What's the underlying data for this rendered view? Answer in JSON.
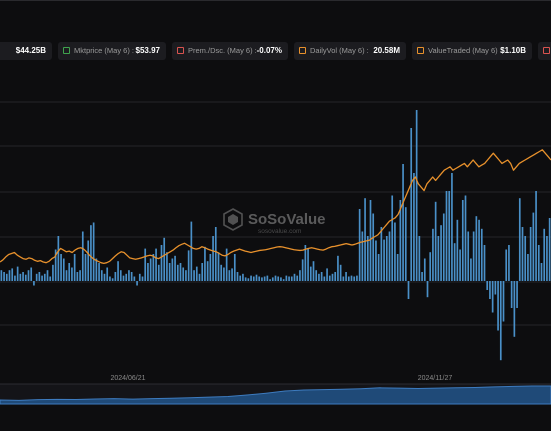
{
  "legend": [
    {
      "label": "",
      "value": "$44.25B",
      "color": "#5f9fd6"
    },
    {
      "label": "Mktprice (May 6) :",
      "value": "$53.97",
      "color": "#3fa34d"
    },
    {
      "label": "Prem./Dsc. (May 6) :",
      "value": "-0.07%",
      "color": "#d9534f"
    },
    {
      "label": "DailyVol (May 6) :",
      "value": "20.58M",
      "color": "#e8912c"
    },
    {
      "label": "ValueTraded (May 6) :",
      "value": "$1.10B",
      "color": "#e8912c"
    },
    {
      "label": "",
      "value": "",
      "color": "#d9534f"
    }
  ],
  "watermark": {
    "brand": "SoSoValue",
    "url": "sosovalue.com"
  },
  "colors": {
    "bars": "#4a90c8",
    "line": "#e8912c",
    "grid": "#25252a",
    "navigator": "#1f4a78"
  },
  "chart_data": {
    "type": "bar",
    "x_tick_labels": [
      "2024/06/21",
      "2024/11/27"
    ],
    "series": [
      {
        "type": "bar",
        "values": [
          0.12,
          0.1,
          0.08,
          0.12,
          0.14,
          0.06,
          0.16,
          0.08,
          0.1,
          0.07,
          0.12,
          0.15,
          -0.05,
          0.08,
          0.1,
          0.06,
          0.08,
          0.12,
          0.05,
          0.18,
          0.35,
          0.5,
          0.3,
          0.25,
          0.12,
          0.2,
          0.15,
          0.3,
          0.1,
          0.12,
          0.55,
          0.3,
          0.45,
          0.62,
          0.65,
          0.25,
          0.2,
          0.12,
          0.08,
          0.15,
          0.05,
          0.03,
          0.1,
          0.22,
          0.12,
          0.06,
          0.08,
          0.12,
          0.1,
          0.05,
          -0.05,
          0.08,
          0.05,
          0.36,
          0.2,
          0.25,
          0.3,
          0.36,
          0.18,
          0.4,
          0.48,
          0.32,
          0.2,
          0.25,
          0.28,
          0.18,
          0.2,
          0.15,
          0.12,
          0.34,
          0.66,
          0.12,
          0.16,
          0.08,
          0.2,
          0.38,
          0.22,
          0.3,
          0.5,
          0.6,
          0.32,
          0.18,
          0.15,
          0.36,
          0.12,
          0.14,
          0.3,
          0.1,
          0.06,
          0.08,
          0.04,
          0.03,
          0.06,
          0.05,
          0.07,
          0.05,
          0.04,
          0.05,
          0.06,
          0.02,
          0.04,
          0.06,
          0.05,
          0.04,
          0.02,
          0.06,
          0.05,
          0.05,
          0.08,
          0.06,
          0.12,
          0.24,
          0.4,
          0.36,
          0.16,
          0.22,
          0.12,
          0.08,
          0.1,
          0.05,
          0.14,
          0.06,
          0.08,
          0.1,
          0.28,
          0.18,
          0.05,
          0.1,
          0.05,
          0.06,
          0.05,
          0.06,
          0.8,
          0.55,
          0.92,
          0.5,
          0.9,
          0.75,
          0.45,
          0.3,
          0.6,
          0.46,
          0.5,
          0.55,
          0.95,
          0.65,
          0.3,
          0.9,
          1.3,
          0.82,
          -0.2,
          1.7,
          1.2,
          1.9,
          0.5,
          0.1,
          0.25,
          -0.18,
          0.32,
          0.58,
          0.88,
          0.5,
          0.62,
          0.75,
          1.0,
          1.0,
          1.2,
          0.42,
          0.68,
          0.35,
          0.9,
          0.95,
          0.55,
          0.25,
          0.55,
          0.72,
          0.68,
          0.58,
          0.4,
          -0.1,
          -0.2,
          -0.35,
          -0.15,
          -0.55,
          -0.88,
          -0.45,
          0.35,
          0.4,
          -0.3,
          -0.62,
          -0.3,
          0.92,
          0.6,
          0.5,
          0.3,
          0.6,
          0.76,
          1.0,
          0.4,
          0.2,
          0.58,
          0.5,
          0.7
        ]
      },
      {
        "type": "line",
        "values": [
          0.6,
          0.66,
          0.75,
          0.82,
          0.85,
          0.88,
          0.8,
          0.75,
          0.7,
          0.68,
          0.72,
          0.7,
          0.65,
          0.62,
          0.64,
          0.6,
          0.58,
          0.62,
          0.7,
          0.75,
          0.9,
          1.0,
          0.95,
          0.9,
          0.92,
          0.88,
          0.95,
          1.0,
          1.02,
          0.98,
          0.9,
          0.8,
          0.72,
          0.66,
          0.62,
          0.58,
          0.56,
          0.58,
          0.62,
          0.7,
          0.78,
          0.85,
          0.9,
          0.88,
          0.8,
          0.72,
          0.7,
          0.68,
          0.7,
          0.72,
          0.75,
          0.78,
          0.8,
          0.78,
          0.72,
          0.7,
          0.75,
          0.8,
          0.85,
          0.9,
          0.95,
          1.02,
          1.08,
          1.12,
          1.15,
          1.1,
          1.05,
          1.0,
          0.98,
          1.0,
          1.05,
          1.02,
          0.98,
          0.95,
          0.92,
          0.9,
          0.85,
          0.8,
          0.78,
          0.82,
          0.88,
          0.92,
          0.95,
          0.98,
          0.95,
          0.92,
          0.9,
          0.88,
          0.9,
          0.92,
          0.94,
          0.95,
          0.96,
          0.98,
          1.0,
          1.02,
          1.04,
          1.05,
          1.04,
          1.02,
          1.0,
          0.98,
          0.96,
          0.95,
          0.94,
          0.95,
          0.98,
          1.0,
          1.02,
          1.0,
          0.98,
          0.96,
          0.95,
          0.98,
          1.02,
          1.05,
          1.06,
          1.08,
          1.1,
          1.12,
          1.14,
          1.12,
          1.1,
          1.12,
          1.15,
          1.18,
          1.2,
          1.22,
          1.24,
          1.3,
          1.35,
          1.4,
          1.5,
          1.6,
          1.7,
          1.8,
          1.85,
          1.9,
          2.0,
          2.2,
          2.4,
          2.6,
          2.8,
          3.0,
          3.1,
          2.9,
          2.8,
          2.7,
          2.9,
          3.0,
          3.1,
          3.0,
          3.1,
          3.2,
          3.3,
          3.35,
          3.4,
          3.3,
          3.35,
          3.4,
          3.45,
          3.5,
          3.4,
          3.5,
          3.6,
          3.5,
          3.4,
          3.45,
          3.5,
          3.6,
          3.7,
          3.8,
          3.7,
          3.6,
          3.5,
          3.55,
          3.6,
          3.5,
          3.3,
          3.4,
          3.5,
          3.55,
          3.6,
          3.65,
          3.7,
          3.75,
          3.8,
          3.85,
          3.9,
          3.8,
          3.7,
          3.6
        ]
      }
    ],
    "navigator": {
      "values": [
        0.22,
        0.2,
        0.24,
        0.26,
        0.25,
        0.28,
        0.3,
        0.27,
        0.3,
        0.32,
        0.35,
        0.38,
        0.42,
        0.5,
        0.6,
        0.72,
        0.78,
        0.8,
        0.82,
        0.85,
        0.9,
        0.88,
        0.86,
        0.88,
        0.9,
        0.92,
        0.95,
        0.98,
        1.0,
        1.0
      ]
    }
  }
}
